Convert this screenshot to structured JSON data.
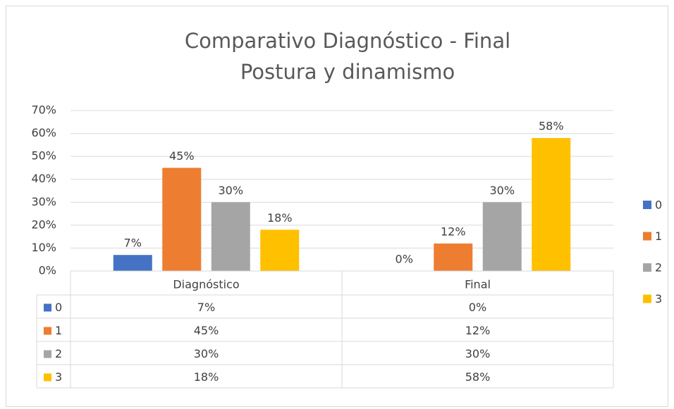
{
  "chart_data": {
    "type": "bar",
    "title": "Comparativo Diagnóstico - Final",
    "subtitle": "Postura y dinamismo",
    "categories": [
      "Diagnóstico",
      "Final"
    ],
    "series": [
      {
        "name": "0",
        "color": "#4472c4",
        "values": [
          7,
          0
        ],
        "value_labels": [
          "7%",
          "0%"
        ]
      },
      {
        "name": "1",
        "color": "#ed7d31",
        "values": [
          45,
          12
        ],
        "value_labels": [
          "45%",
          "12%"
        ]
      },
      {
        "name": "2",
        "color": "#a5a5a5",
        "values": [
          30,
          30
        ],
        "value_labels": [
          "30%",
          "30%"
        ]
      },
      {
        "name": "3",
        "color": "#ffc000",
        "values": [
          18,
          58
        ],
        "value_labels": [
          "18%",
          "58%"
        ]
      }
    ],
    "ylim": [
      0,
      70
    ],
    "yticks": [
      {
        "value": 0,
        "label": "0%"
      },
      {
        "value": 10,
        "label": "10%"
      },
      {
        "value": 20,
        "label": "20%"
      },
      {
        "value": 30,
        "label": "30%"
      },
      {
        "value": 40,
        "label": "40%"
      },
      {
        "value": 50,
        "label": "50%"
      },
      {
        "value": 60,
        "label": "60%"
      },
      {
        "value": 70,
        "label": "70%"
      }
    ],
    "grid": true,
    "legend": "right",
    "data_table": true
  }
}
